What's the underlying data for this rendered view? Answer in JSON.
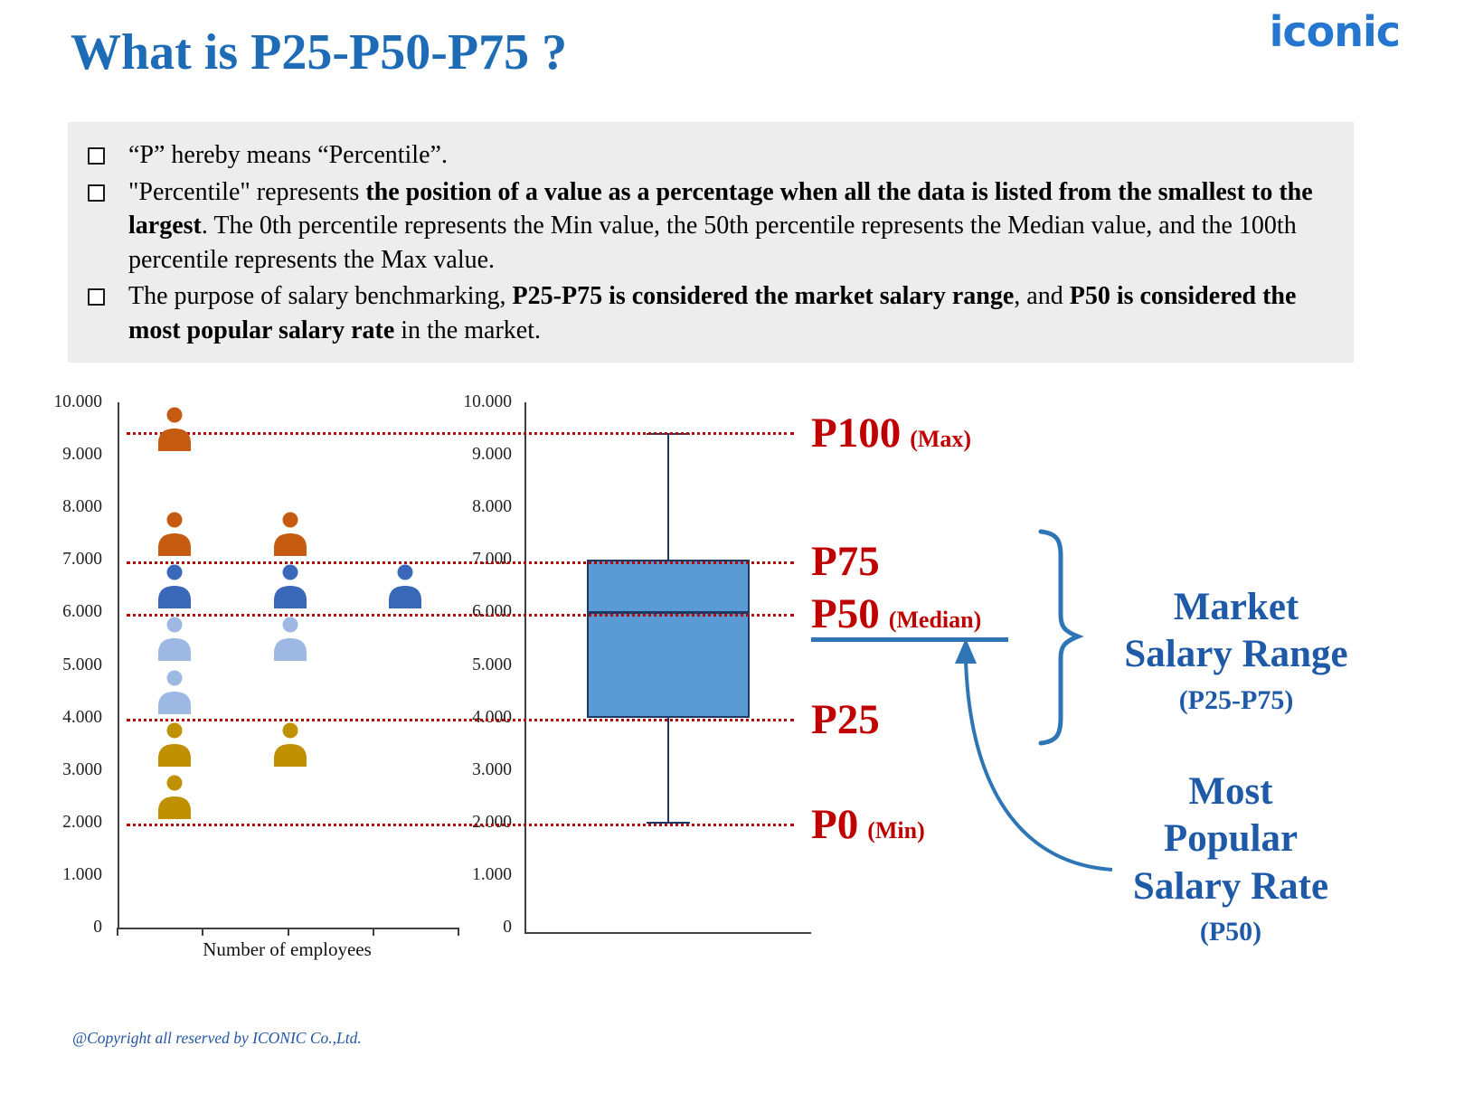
{
  "colors": {
    "title_blue": "#1E6CB5",
    "logo_blue": "#2576CE",
    "red": "#C00000",
    "dotted_red": "#B00A0A",
    "annotation_blue": "#2E75B6",
    "text_blue": "#1E5AA8",
    "box_fill": "#5B9BD5",
    "box_border": "#1F3864",
    "person_orange": "#C55A11",
    "person_blue": "#3A68B8",
    "person_lightblue": "#9DB8E2",
    "person_gold": "#BF9000"
  },
  "header": {
    "title": "What is P25-P50-P75 ?",
    "logo": "iconic"
  },
  "info_box": {
    "bullets": [
      {
        "segments": [
          {
            "text": "“P” hereby means “Percentile”.",
            "bold": false
          }
        ]
      },
      {
        "segments": [
          {
            "text": "\"Percentile\" represents ",
            "bold": false
          },
          {
            "text": "the position of a value as a percentage when all the data is listed from the smallest to the largest",
            "bold": true
          },
          {
            "text": ". The 0th percentile represents the Min value, the 50th percentile represents the Median value, and the 100th percentile represents the Max value.",
            "bold": false
          }
        ]
      },
      {
        "segments": [
          {
            "text": "The purpose of salary benchmarking, ",
            "bold": false
          },
          {
            "text": "P25-P75 is considered the market salary range",
            "bold": true
          },
          {
            "text": ", and ",
            "bold": false
          },
          {
            "text": "P50 is considered the most popular salary rate",
            "bold": true
          },
          {
            "text": " in the market.",
            "bold": false
          }
        ]
      }
    ]
  },
  "chart_data": [
    {
      "type": "scatter",
      "title": "",
      "xlabel": "Number of employees",
      "ylabel": "",
      "ylim": [
        0,
        10000
      ],
      "y_ticks": [
        "10.000",
        "9.000",
        "8.000",
        "7.000",
        "6.000",
        "5.000",
        "4.000",
        "3.000",
        "2.000",
        "1.000",
        "0"
      ],
      "points": [
        {
          "value": 9500,
          "col": 0,
          "color": "person_orange"
        },
        {
          "value": 7500,
          "col": 0,
          "color": "person_orange"
        },
        {
          "value": 7500,
          "col": 1,
          "color": "person_orange"
        },
        {
          "value": 6500,
          "col": 0,
          "color": "person_blue"
        },
        {
          "value": 6500,
          "col": 1,
          "color": "person_blue"
        },
        {
          "value": 6500,
          "col": 2,
          "color": "person_blue"
        },
        {
          "value": 5500,
          "col": 0,
          "color": "person_lightblue"
        },
        {
          "value": 5500,
          "col": 1,
          "color": "person_lightblue"
        },
        {
          "value": 4500,
          "col": 0,
          "color": "person_lightblue"
        },
        {
          "value": 3500,
          "col": 0,
          "color": "person_gold"
        },
        {
          "value": 3500,
          "col": 1,
          "color": "person_gold"
        },
        {
          "value": 2500,
          "col": 0,
          "color": "person_gold"
        }
      ]
    },
    {
      "type": "boxplot",
      "title": "",
      "ylim": [
        0,
        10000
      ],
      "y_ticks": [
        "10.000",
        "9.000",
        "8.000",
        "7.000",
        "6.000",
        "5.000",
        "4.000",
        "3.000",
        "2.000",
        "1.000",
        "0"
      ],
      "box": {
        "whisker_low": 2000,
        "q1": 4000,
        "median": 6000,
        "q3": 7000,
        "whisker_high": 9400
      }
    }
  ],
  "percentile_lines": [
    {
      "id": "p100",
      "value": 9400,
      "label": "P100",
      "sublabel": "(Max)"
    },
    {
      "id": "p75",
      "value": 6950,
      "label": "P75",
      "sublabel": ""
    },
    {
      "id": "p50",
      "value": 5950,
      "label": "P50",
      "sublabel": "(Median)"
    },
    {
      "id": "p25",
      "value": 3950,
      "label": "P25",
      "sublabel": ""
    },
    {
      "id": "p0",
      "value": 1950,
      "label": "P0",
      "sublabel": "(Min)"
    }
  ],
  "annotations": {
    "market_range": {
      "line1": "Market",
      "line2": "Salary Range",
      "line3": "(P25-P75)"
    },
    "most_popular": {
      "line1": "Most",
      "line2": "Popular",
      "line3": "Salary Rate",
      "line4": "(P50)"
    }
  },
  "footer": {
    "copyright": "@Copyright all reserved by ICONIC Co.,Ltd."
  }
}
